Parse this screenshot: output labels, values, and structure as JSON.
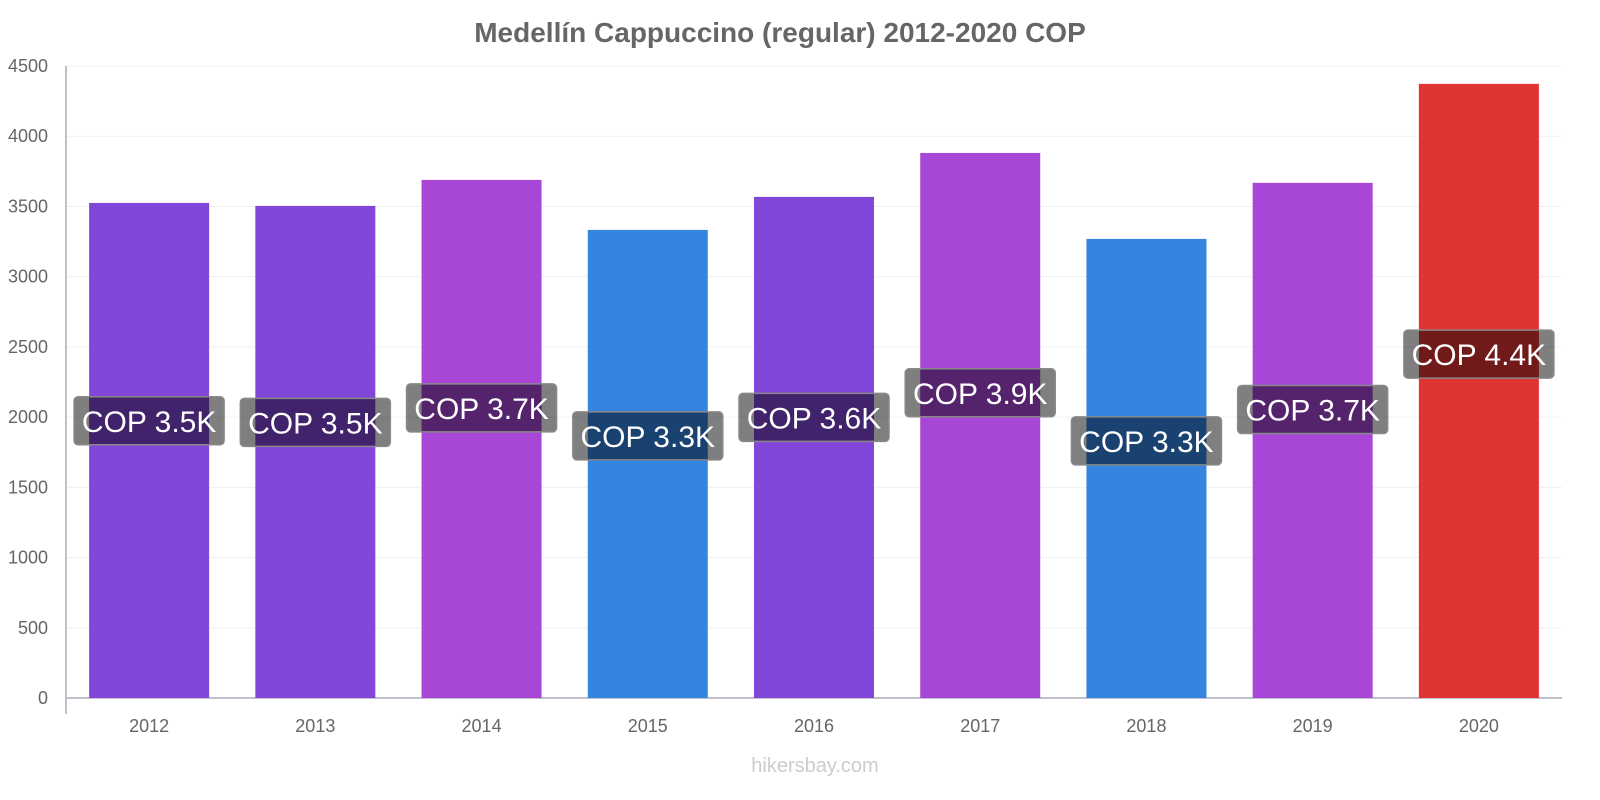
{
  "chart_data": {
    "type": "bar",
    "title": "Medellín Cappuccino (regular) 2012-2020 COP",
    "xlabel": "",
    "ylabel": "",
    "ylim": [
      0,
      4500
    ],
    "yticks": [
      0,
      500,
      1000,
      1500,
      2000,
      2500,
      3000,
      3500,
      4000,
      4500
    ],
    "grid": true,
    "categories": [
      "2012",
      "2013",
      "2014",
      "2015",
      "2016",
      "2017",
      "2018",
      "2019",
      "2020"
    ],
    "values": [
      3525,
      3504,
      3689,
      3333,
      3568,
      3881,
      3269,
      3668,
      4373
    ],
    "data_labels": [
      "COP 3.5K",
      "COP 3.5K",
      "COP 3.7K",
      "COP 3.3K",
      "COP 3.6K",
      "COP 3.9K",
      "COP 3.3K",
      "COP 3.7K",
      "COP 4.4K"
    ],
    "colors": [
      "#8247d9",
      "#8247d9",
      "#a846d8",
      "#3584e0",
      "#8247d9",
      "#a846d8",
      "#3584e0",
      "#a846d8",
      "#e03434"
    ]
  },
  "footer": "hikersbay.com"
}
